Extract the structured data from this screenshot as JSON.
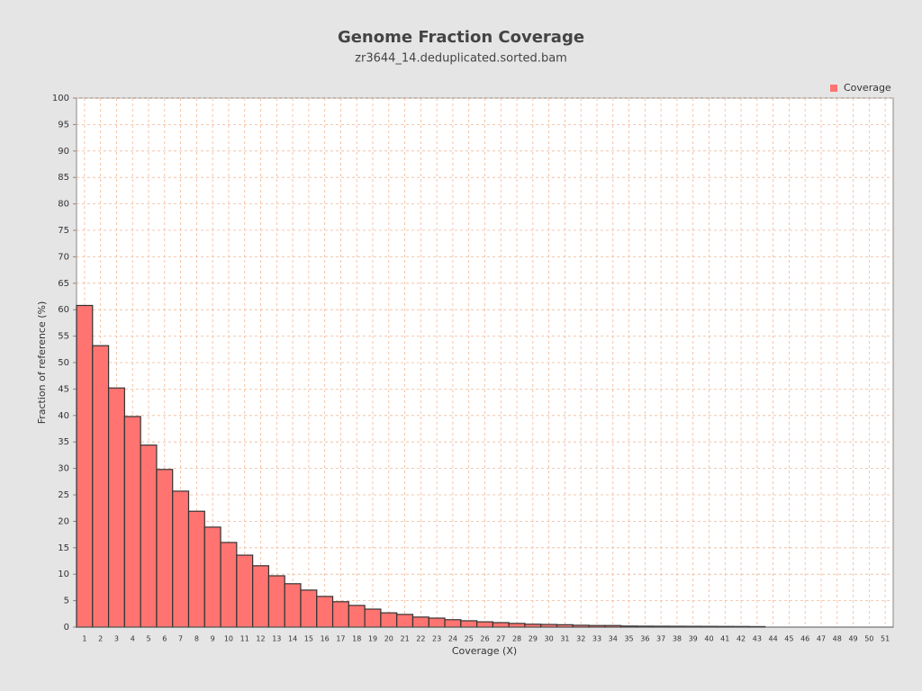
{
  "chart_data": {
    "type": "bar",
    "title": "Genome Fraction Coverage",
    "subtitle": "zr3644_14.deduplicated.sorted.bam",
    "x_label": "Coverage (X)",
    "y_label": "Fraction of reference (%)",
    "categories": [
      "1",
      "2",
      "3",
      "4",
      "5",
      "6",
      "7",
      "8",
      "9",
      "10",
      "11",
      "12",
      "13",
      "14",
      "15",
      "16",
      "17",
      "18",
      "19",
      "20",
      "21",
      "22",
      "23",
      "24",
      "25",
      "26",
      "27",
      "28",
      "29",
      "30",
      "31",
      "32",
      "33",
      "34",
      "35",
      "36",
      "37",
      "38",
      "39",
      "40",
      "41",
      "42",
      "43",
      "44",
      "45",
      "46",
      "47",
      "48",
      "49",
      "50",
      "51"
    ],
    "series": [
      {
        "name": "Coverage",
        "color": "#ff7470",
        "values": [
          60.8,
          53.2,
          45.2,
          39.8,
          34.4,
          29.8,
          25.7,
          21.9,
          18.9,
          16.0,
          13.6,
          11.6,
          9.7,
          8.2,
          7.0,
          5.8,
          4.8,
          4.1,
          3.4,
          2.7,
          2.4,
          1.9,
          1.7,
          1.4,
          1.2,
          1.0,
          0.85,
          0.7,
          0.55,
          0.5,
          0.45,
          0.35,
          0.3,
          0.3,
          0.2,
          0.18,
          0.17,
          0.16,
          0.15,
          0.14,
          0.13,
          0.12,
          0.1,
          0,
          0,
          0,
          0,
          0,
          0,
          0,
          0
        ]
      }
    ],
    "ylim": [
      0,
      100
    ],
    "yticks": [
      0,
      5,
      10,
      15,
      20,
      25,
      30,
      35,
      40,
      45,
      50,
      55,
      60,
      65,
      70,
      75,
      80,
      85,
      90,
      95,
      100
    ],
    "grid": true,
    "legend": "top-right"
  }
}
